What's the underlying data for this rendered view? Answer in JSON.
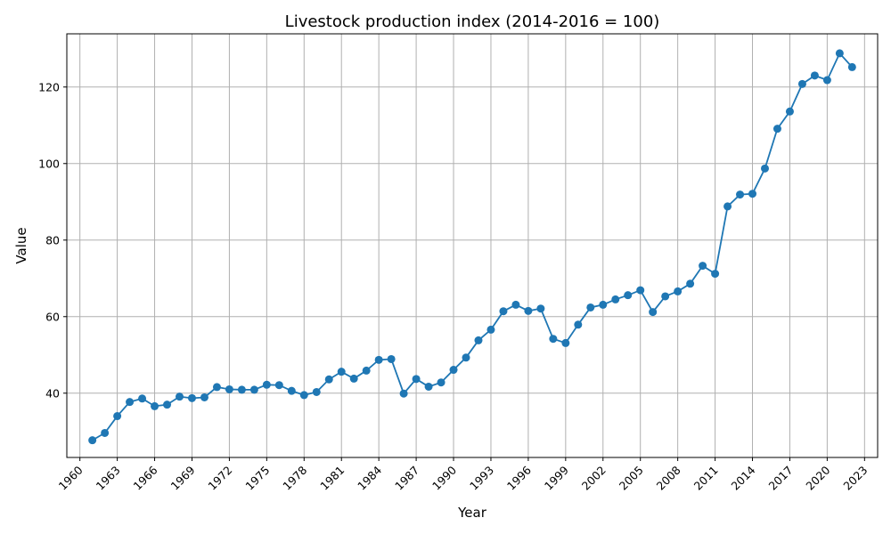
{
  "chart_data": {
    "type": "line",
    "title": "Livestock production index (2014-2016 = 100)",
    "xlabel": "Year",
    "ylabel": "Value",
    "xlim": [
      1958.95,
      2024.05
    ],
    "ylim": [
      23.2,
      133.9
    ],
    "xticks": [
      1960,
      1963,
      1966,
      1969,
      1972,
      1975,
      1978,
      1981,
      1984,
      1987,
      1990,
      1993,
      1996,
      1999,
      2002,
      2005,
      2008,
      2011,
      2014,
      2017,
      2020,
      2023
    ],
    "yticks": [
      40,
      60,
      80,
      100,
      120
    ],
    "grid": true,
    "marker": "circle",
    "color": "#1f77b4",
    "x": [
      1961,
      1962,
      1963,
      1964,
      1965,
      1966,
      1967,
      1968,
      1969,
      1970,
      1971,
      1972,
      1973,
      1974,
      1975,
      1976,
      1977,
      1978,
      1979,
      1980,
      1981,
      1982,
      1983,
      1984,
      1985,
      1986,
      1987,
      1988,
      1989,
      1990,
      1991,
      1992,
      1993,
      1994,
      1995,
      1996,
      1997,
      1998,
      1999,
      2000,
      2001,
      2002,
      2003,
      2004,
      2005,
      2006,
      2007,
      2008,
      2009,
      2010,
      2011,
      2012,
      2013,
      2014,
      2015,
      2016,
      2017,
      2018,
      2019,
      2020,
      2021,
      2022
    ],
    "y": [
      27.7,
      29.6,
      34.0,
      37.7,
      38.6,
      36.6,
      37.0,
      39.1,
      38.7,
      38.9,
      41.6,
      41.0,
      40.9,
      40.9,
      42.2,
      42.1,
      40.6,
      39.5,
      40.3,
      43.6,
      45.6,
      43.8,
      45.9,
      48.7,
      48.9,
      39.9,
      43.7,
      41.7,
      42.8,
      46.1,
      49.3,
      53.8,
      56.6,
      61.4,
      63.1,
      61.5,
      62.1,
      54.2,
      53.1,
      57.9,
      62.4,
      63.1,
      64.5,
      65.6,
      66.9,
      61.2,
      65.3,
      66.6,
      68.6,
      73.3,
      71.2,
      88.8,
      91.9,
      92.1,
      98.7,
      109.1,
      113.6,
      120.8,
      123.0,
      121.8,
      128.8,
      125.2
    ]
  }
}
